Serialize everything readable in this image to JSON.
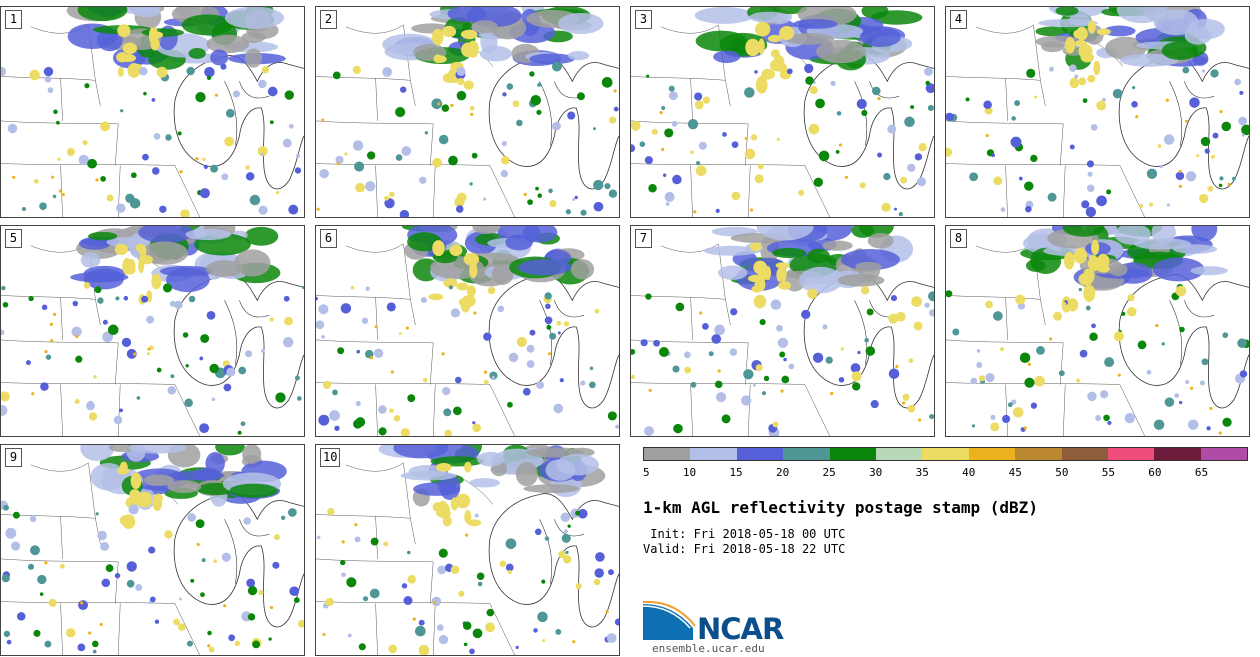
{
  "panels": [
    {
      "label": "1"
    },
    {
      "label": "2"
    },
    {
      "label": "3"
    },
    {
      "label": "4"
    },
    {
      "label": "5"
    },
    {
      "label": "6"
    },
    {
      "label": "7"
    },
    {
      "label": "8"
    },
    {
      "label": "9"
    },
    {
      "label": "10"
    }
  ],
  "colorbar": {
    "colors": [
      "#a0a0a0",
      "#b4bfe8",
      "#5560d8",
      "#4f9696",
      "#0a870a",
      "#b8d9b8",
      "#ecdc64",
      "#ecb21e",
      "#bb8730",
      "#8f5c3c",
      "#f04e7a",
      "#6e1a3a",
      "#b04ca8"
    ],
    "ticks": [
      "5",
      "10",
      "15",
      "20",
      "25",
      "30",
      "35",
      "40",
      "45",
      "50",
      "55",
      "60",
      "65"
    ]
  },
  "title": "1-km AGL reflectivity postage stamp (dBZ)",
  "init": " Init: Fri 2018-05-18 00 UTC",
  "valid": "Valid: Fri 2018-05-18 22 UTC",
  "logo": {
    "text": "NCAR",
    "site": "ensemble.ucar.edu",
    "colors": [
      "#0e6fb3",
      "#f0a030"
    ]
  }
}
